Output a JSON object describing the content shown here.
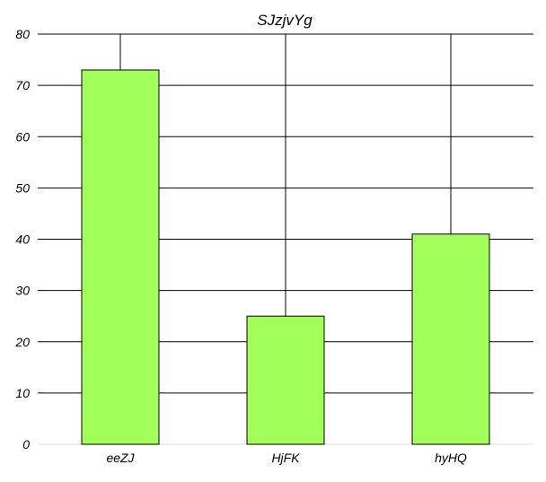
{
  "chart_data": {
    "type": "bar",
    "title": "SJzjvYg",
    "categories": [
      "eeZJ",
      "HjFK",
      "hyHQ"
    ],
    "values": [
      73,
      25,
      41
    ],
    "ylim": [
      0,
      80
    ],
    "yticks": [
      0,
      10,
      20,
      30,
      40,
      50,
      60,
      70,
      80
    ],
    "xlabel": "",
    "ylabel": "",
    "grid": true,
    "bar_color": "#a2ff5a",
    "grid_color": "#000000"
  }
}
